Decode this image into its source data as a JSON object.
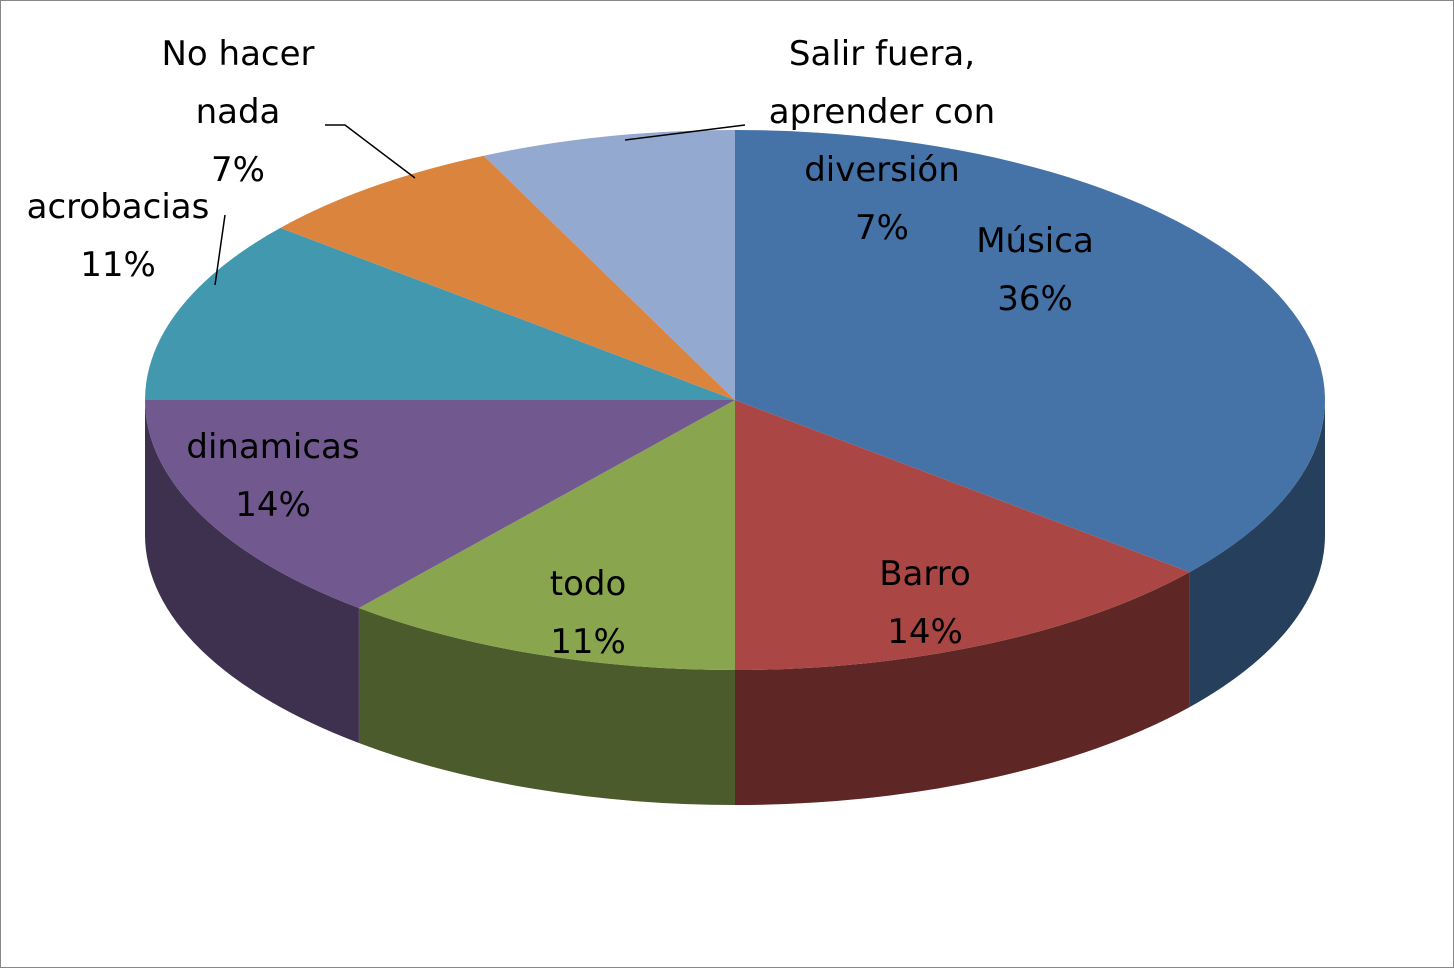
{
  "chart_data": {
    "type": "pie",
    "categories": [
      "Música",
      "Barro",
      "todo",
      "dinamicas",
      "acrobacias",
      "No hacer nada",
      "Salir fuera, aprender con diversión"
    ],
    "values": [
      36,
      14,
      11,
      14,
      11,
      7,
      7
    ],
    "value_labels": [
      "36%",
      "14%",
      "11%",
      "14%",
      "11%",
      "7%",
      "7%"
    ],
    "colors": [
      "#4572a7",
      "#aa4643",
      "#89a54e",
      "#71588f",
      "#4198af",
      "#db843d",
      "#93a9cf"
    ]
  }
}
